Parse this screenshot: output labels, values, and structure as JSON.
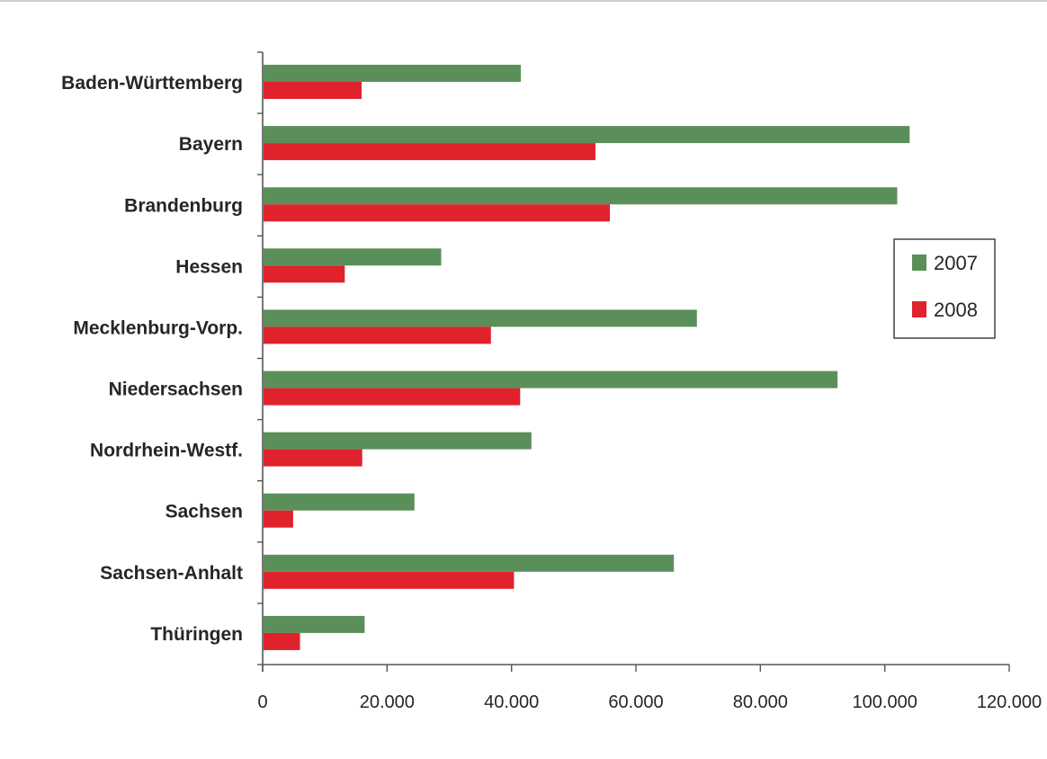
{
  "chart_data": {
    "type": "bar",
    "orientation": "horizontal",
    "categories": [
      "Baden-Württemberg",
      "Bayern",
      "Brandenburg",
      "Hessen",
      "Mecklenburg-Vorp.",
      "Niedersachsen",
      "Nordrhein-Westf.",
      "Sachsen",
      "Sachsen-Anhalt",
      "Thüringen"
    ],
    "series": [
      {
        "name": "2007",
        "color": "#5b8f5a",
        "values": [
          41500,
          104000,
          102000,
          28700,
          69800,
          92400,
          43200,
          24400,
          66100,
          16400
        ]
      },
      {
        "name": "2008",
        "color": "#e0222c",
        "values": [
          15900,
          53500,
          55800,
          13200,
          36700,
          41400,
          16000,
          4900,
          40400,
          6000
        ]
      }
    ],
    "xlim": [
      0,
      120000
    ],
    "xticks": [
      0,
      20000,
      40000,
      60000,
      80000,
      100000,
      120000
    ],
    "xtick_labels": [
      "0",
      "20.000",
      "40.000",
      "60.000",
      "80.000",
      "100.000",
      "120.000"
    ],
    "legend_position": "right",
    "grid": false
  }
}
